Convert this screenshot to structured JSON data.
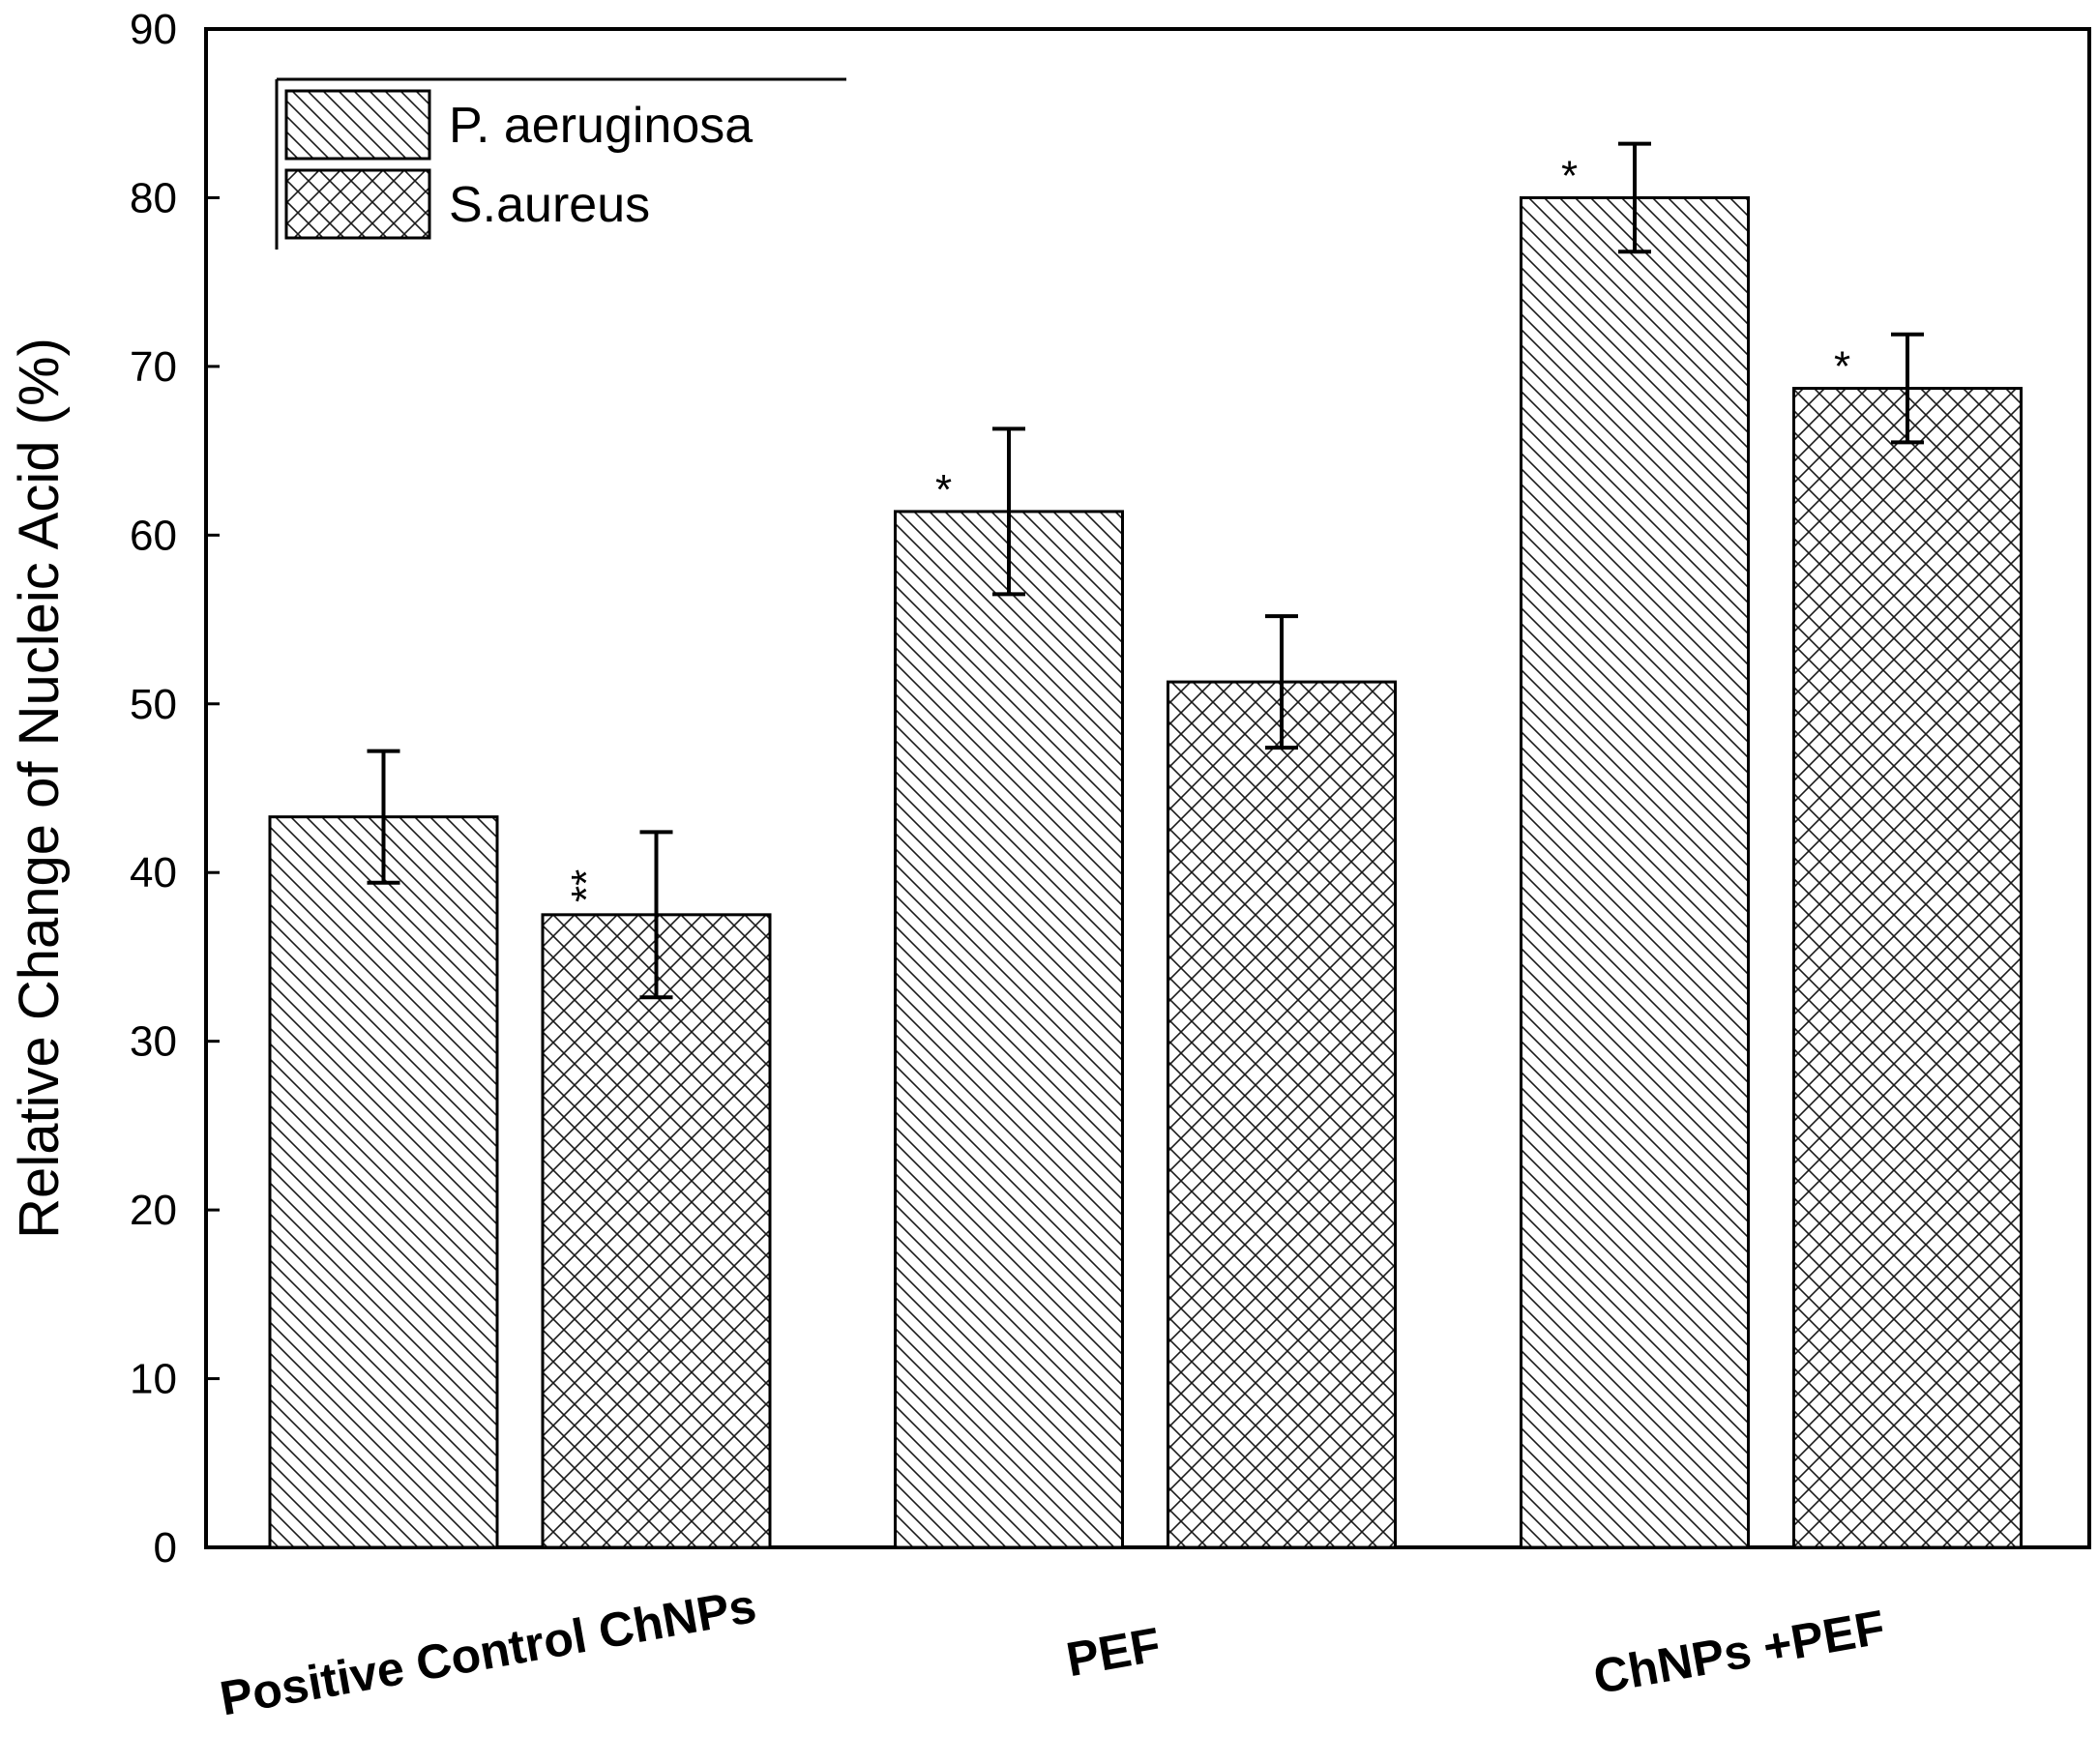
{
  "chart_data": {
    "type": "bar",
    "title": "",
    "xlabel": "",
    "ylabel": "Relative Change of Nucleic Acid (%)",
    "ylim": [
      0,
      90
    ],
    "yticks": [
      0,
      10,
      20,
      30,
      40,
      50,
      60,
      70,
      80,
      90
    ],
    "grid": false,
    "legend_position": "top-left",
    "categories": [
      "Positive Control ChNPs",
      "PEF",
      "ChNPs +PEF"
    ],
    "series": [
      {
        "name": "P. aeruginosa",
        "pattern": "diagonal",
        "values": [
          43.3,
          61.4,
          80.0
        ],
        "errors": [
          3.9,
          4.9,
          3.2
        ],
        "annotations": [
          "",
          "*",
          "*"
        ]
      },
      {
        "name": "S.aureus",
        "pattern": "crosshatch",
        "values": [
          37.5,
          51.3,
          68.7
        ],
        "errors": [
          4.9,
          3.9,
          3.2
        ],
        "annotations": [
          "**",
          "",
          "*"
        ]
      }
    ],
    "colors": {
      "frame": "#000000",
      "fill": "#ffffff",
      "hatch": "#1a1a1a",
      "background": "#ffffff"
    }
  }
}
